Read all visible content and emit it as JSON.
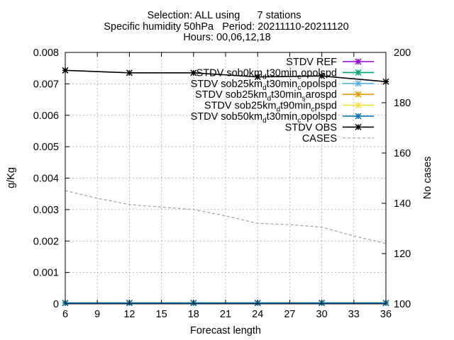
{
  "chart_data": {
    "type": "line",
    "title_lines": [
      "Selection: ALL using      7 stations",
      "Specific humidity 50hPa   Period: 20211110-20211120",
      "Hours: 00,06,12,18"
    ],
    "xlabel": "Forecast length",
    "ylabel": "g/Kg",
    "y2label": "No cases",
    "xlim": [
      6,
      36
    ],
    "xticks": [
      6,
      9,
      12,
      15,
      18,
      21,
      24,
      27,
      30,
      33,
      36
    ],
    "ylim": [
      0,
      0.008
    ],
    "yticks": [
      0,
      0.001,
      0.002,
      0.003,
      0.004,
      0.005,
      0.006,
      0.007,
      0.008
    ],
    "ytick_labels": [
      "0",
      "0.001",
      "0.002",
      "0.003",
      "0.004",
      "0.005",
      "0.006",
      "0.007",
      "0.008"
    ],
    "y2lim": [
      100,
      200
    ],
    "y2ticks": [
      100,
      120,
      140,
      160,
      180,
      200
    ],
    "grid": true,
    "legend_position": "top-right",
    "x": [
      6,
      12,
      18,
      24,
      30,
      36
    ],
    "series": [
      {
        "name": "STDV REF",
        "legend": [
          {
            "t": "STDV REF"
          }
        ],
        "color": "#9400d3",
        "marker": "star",
        "axis": "y1",
        "values": [
          3e-05,
          3e-05,
          3e-05,
          3e-05,
          3e-05,
          3e-05
        ]
      },
      {
        "name": "STDV sob0km_dt30min_copolspd",
        "legend": [
          {
            "t": "STDV sob0km"
          },
          {
            "t": "d",
            "s": 1
          },
          {
            "t": "t30min"
          },
          {
            "t": "c",
            "s": 1
          },
          {
            "t": "opolspd"
          }
        ],
        "color": "#009e73",
        "marker": "star",
        "axis": "y1",
        "values": [
          3e-05,
          3e-05,
          3e-05,
          3e-05,
          3e-05,
          3e-05
        ]
      },
      {
        "name": "STDV sob25km_dt30min_copolspd",
        "legend": [
          {
            "t": "STDV sob25km"
          },
          {
            "t": "d",
            "s": 1
          },
          {
            "t": "t30min"
          },
          {
            "t": "c",
            "s": 1
          },
          {
            "t": "opolspd"
          }
        ],
        "color": "#56b4e9",
        "marker": "star",
        "axis": "y1",
        "values": [
          3e-05,
          3e-05,
          3e-05,
          3e-05,
          3e-05,
          3e-05
        ]
      },
      {
        "name": "STDV sob25km_dt30min_sarospd",
        "legend": [
          {
            "t": "STDV sob25km"
          },
          {
            "t": "d",
            "s": 1
          },
          {
            "t": "t30min"
          },
          {
            "t": "s",
            "s": 1
          },
          {
            "t": "arospd"
          }
        ],
        "color": "#e69f00",
        "marker": "star",
        "axis": "y1",
        "values": [
          3e-05,
          3e-05,
          3e-05,
          3e-05,
          3e-05,
          3e-05
        ]
      },
      {
        "name": "STDV sob25km_dt90min_cpspd",
        "legend": [
          {
            "t": "STDV sob25km"
          },
          {
            "t": "d",
            "s": 1
          },
          {
            "t": "t90min"
          },
          {
            "t": "c",
            "s": 1
          },
          {
            "t": "pspd"
          }
        ],
        "color": "#f0e442",
        "marker": "star",
        "axis": "y1",
        "values": [
          3e-05,
          3e-05,
          3e-05,
          3e-05,
          3e-05,
          3e-05
        ]
      },
      {
        "name": "STDV sob50km_dt30min_copolspd",
        "legend": [
          {
            "t": "STDV sob50km"
          },
          {
            "t": "d",
            "s": 1
          },
          {
            "t": "t30min"
          },
          {
            "t": "c",
            "s": 1
          },
          {
            "t": "opolspd"
          }
        ],
        "color": "#0072b2",
        "marker": "star",
        "axis": "y1",
        "values": [
          3e-05,
          3e-05,
          3e-05,
          3e-05,
          3e-05,
          3e-05
        ]
      },
      {
        "name": "STDV OBS",
        "legend": [
          {
            "t": "STDV OBS"
          }
        ],
        "color": "#000000",
        "marker": "star",
        "axis": "y1",
        "values": [
          0.00743,
          0.00735,
          0.00735,
          0.00722,
          0.00725,
          0.00707
        ]
      },
      {
        "name": "CASES",
        "legend": [
          {
            "t": "CASES"
          }
        ],
        "color": "#a0a0a0",
        "dashed": true,
        "marker": "none",
        "axis": "y2",
        "x": [
          6,
          9,
          12,
          15,
          18,
          21,
          24,
          27,
          30,
          33,
          36
        ],
        "values": [
          145,
          142,
          139.5,
          138.5,
          137.5,
          135,
          132,
          131.5,
          130.5,
          127,
          124
        ]
      }
    ]
  }
}
